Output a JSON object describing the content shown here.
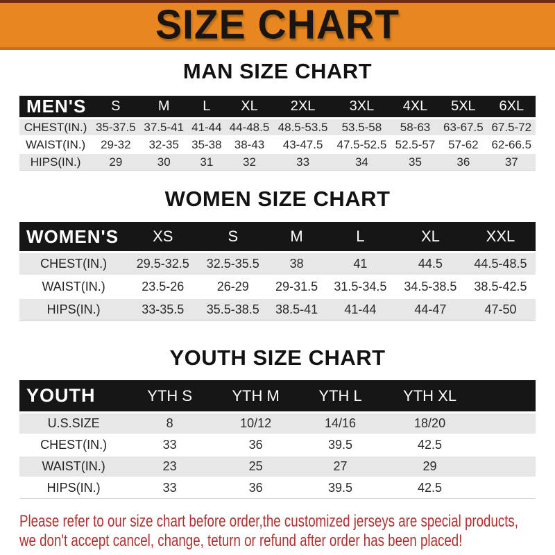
{
  "banner": {
    "title": "SIZE CHART"
  },
  "men": {
    "heading": "MAN SIZE CHART",
    "table_label": "MEN'S",
    "sizes": [
      "S",
      "M",
      "L",
      "XL",
      "2XL",
      "3XL",
      "4XL",
      "5XL",
      "6XL"
    ],
    "rows": [
      {
        "label": "CHEST(IN.)",
        "values": [
          "35-37.5",
          "37.5-41",
          "41-44",
          "44-48.5",
          "48.5-53.5",
          "53.5-58",
          "58-63",
          "63-67.5",
          "67.5-72"
        ]
      },
      {
        "label": "WAIST(IN.)",
        "values": [
          "29-32",
          "32-35",
          "35-38",
          "38-43",
          "43-47.5",
          "47.5-52.5",
          "52.5-57",
          "57-62",
          "62-66.5"
        ]
      },
      {
        "label": "HIPS(IN.)",
        "values": [
          "29",
          "30",
          "31",
          "32",
          "33",
          "34",
          "35",
          "36",
          "37"
        ]
      }
    ]
  },
  "women": {
    "heading": "WOMEN SIZE CHART",
    "table_label": "WOMEN'S",
    "sizes": [
      "XS",
      "S",
      "M",
      "L",
      "XL",
      "XXL"
    ],
    "rows": [
      {
        "label": "CHEST(IN.)",
        "values": [
          "29.5-32.5",
          "32.5-35.5",
          "38",
          "41",
          "44.5",
          "44.5-48.5"
        ]
      },
      {
        "label": "WAIST(IN.)",
        "values": [
          "23.5-26",
          "26-29",
          "29-31.5",
          "31.5-34.5",
          "34.5-38.5",
          "38.5-42.5"
        ]
      },
      {
        "label": "HIPS(IN.)",
        "values": [
          "33-35.5",
          "35.5-38.5",
          "38.5-41",
          "41-44",
          "44-47",
          "47-50"
        ]
      }
    ]
  },
  "youth": {
    "heading": "YOUTH SIZE CHART",
    "table_label": "YOUTH",
    "sizes": [
      "YTH S",
      "YTH M",
      "YTH L",
      "YTH XL"
    ],
    "rows": [
      {
        "label": "U.S.SIZE",
        "values": [
          "8",
          "10/12",
          "14/16",
          "18/20"
        ]
      },
      {
        "label": "CHEST(IN.)",
        "values": [
          "33",
          "36",
          "39.5",
          "42.5"
        ]
      },
      {
        "label": "WAIST(IN.)",
        "values": [
          "23",
          "25",
          "27",
          "29"
        ]
      },
      {
        "label": "HIPS(IN.)",
        "values": [
          "33",
          "36",
          "39.5",
          "42.5"
        ]
      }
    ]
  },
  "note": {
    "line1": "Please refer to our size chart before order,the customized jerseys are special products,",
    "line2": "we don't accept cancel, change, teturn or refund after order has been placed!"
  },
  "colors": {
    "banner_orange": "#E8871F",
    "banner_top_line": "#6B2D0E",
    "header_bar_black": "#161616",
    "row_gray": "#E7E7E7",
    "note_red": "#AC3231"
  }
}
